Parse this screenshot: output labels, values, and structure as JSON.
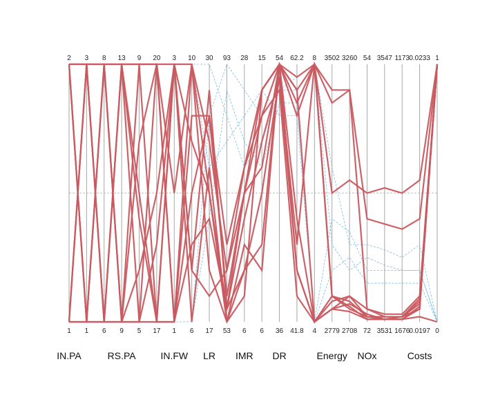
{
  "chart_data": {
    "type": "parallel-coordinates",
    "axes": [
      {
        "name": "IN.PA",
        "max": "2",
        "min": "1",
        "label": "IN.PA"
      },
      {
        "name": "IN.PA.2",
        "max": "3",
        "min": "1",
        "label": ""
      },
      {
        "name": "IN.PA.3",
        "max": "8",
        "min": "6",
        "label": ""
      },
      {
        "name": "RS.PA",
        "max": "13",
        "min": "9",
        "label": "RS.PA"
      },
      {
        "name": "RS.PA.2",
        "max": "9",
        "min": "5",
        "label": ""
      },
      {
        "name": "RS.PA.3",
        "max": "20",
        "min": "17",
        "label": ""
      },
      {
        "name": "IN.FW",
        "max": "3",
        "min": "1",
        "label": "IN.FW"
      },
      {
        "name": "IN.FW.2",
        "max": "10",
        "min": "6",
        "label": ""
      },
      {
        "name": "LR",
        "max": "30",
        "min": "17",
        "label": "LR"
      },
      {
        "name": "LR.2",
        "max": "93",
        "min": "53",
        "label": ""
      },
      {
        "name": "IMR",
        "max": "28",
        "min": "6",
        "label": "IMR"
      },
      {
        "name": "IMR.2",
        "max": "15",
        "min": "6",
        "label": ""
      },
      {
        "name": "DR",
        "max": "54",
        "min": "36",
        "label": "DR"
      },
      {
        "name": "DR.2",
        "max": "62.2",
        "min": "41.8",
        "label": ""
      },
      {
        "name": "DR.3",
        "max": "8",
        "min": "4",
        "label": ""
      },
      {
        "name": "Energy",
        "max": "3502",
        "min": "2779",
        "label": "Energy"
      },
      {
        "name": "Energy.2",
        "max": "3260",
        "min": "2708",
        "label": ""
      },
      {
        "name": "NOx",
        "max": "54",
        "min": "72",
        "label": "NOx"
      },
      {
        "name": "NOx.2",
        "max": "3547",
        "min": "3531",
        "label": ""
      },
      {
        "name": "NOx.3",
        "max": "1173",
        "min": "1676",
        "label": ""
      },
      {
        "name": "Costs",
        "max": "0.0233",
        "min": "0.0197",
        "label": "Costs"
      },
      {
        "name": "Costs.2",
        "max": "1",
        "min": "0",
        "label": ""
      }
    ],
    "top_labels": [
      "2",
      "3",
      "8",
      "13",
      "9",
      "20",
      "3",
      "10",
      "30",
      "93",
      "28",
      "15",
      "54",
      "62.2",
      "8",
      "3502",
      "3260",
      "54",
      "3547",
      "1173",
      "0.0233",
      "1"
    ],
    "bottom_labels": [
      "1",
      "1",
      "6",
      "9",
      "5",
      "17",
      "1",
      "6",
      "17",
      "53",
      "6",
      "6",
      "36",
      "41.8",
      "4",
      "2779",
      "2708",
      "72",
      "3531",
      "1676",
      "0.0197",
      "0"
    ],
    "axis_group_labels": [
      {
        "text": "IN.PA",
        "axis": 0
      },
      {
        "text": "RS.PA",
        "axis": 3
      },
      {
        "text": "IN.FW",
        "axis": 6
      },
      {
        "text": "LR",
        "axis": 8
      },
      {
        "text": "IMR",
        "axis": 10
      },
      {
        "text": "DR",
        "axis": 12
      },
      {
        "text": "Energy",
        "axis": 15
      },
      {
        "text": "NOx",
        "axis": 17
      },
      {
        "text": "Costs",
        "axis": 20
      }
    ],
    "series": [
      {
        "group": "highlighted",
        "color": "#c95a5f",
        "values": [
          [
            1,
            1,
            0,
            1,
            1,
            1,
            0,
            1,
            0.2,
            0,
            0.1,
            0.9,
            1,
            0.8,
            1,
            0.9,
            0.9,
            0.05,
            0.02,
            0.02,
            0.05,
            1
          ],
          [
            0,
            0,
            1,
            0,
            0,
            0,
            1,
            0,
            0.6,
            0,
            0.3,
            0.2,
            1,
            0.9,
            0,
            0.05,
            0.1,
            0.05,
            0.03,
            0.03,
            0.1,
            1
          ],
          [
            1,
            0,
            1,
            1,
            0.5,
            0,
            1,
            1,
            0.5,
            0.05,
            0.4,
            0.7,
            0.95,
            0.2,
            0,
            0.1,
            0.08,
            0.02,
            0.01,
            0.01,
            0.05,
            1
          ],
          [
            0,
            1,
            0,
            0,
            1,
            1,
            0,
            0.5,
            0.8,
            0.1,
            0.5,
            0.6,
            1,
            0.85,
            1,
            0.1,
            0.05,
            0.02,
            0.02,
            0.02,
            0.08,
            1
          ],
          [
            1,
            0,
            0,
            1,
            0,
            0.3,
            1,
            0.2,
            0.9,
            0.05,
            0.5,
            0.8,
            0.9,
            0.1,
            0,
            0.05,
            0.07,
            0.03,
            0.01,
            0.02,
            0.09,
            1
          ],
          [
            0,
            1,
            1,
            0,
            0.7,
            1,
            0.5,
            1,
            0.7,
            0.2,
            0.6,
            0.9,
            1,
            0.9,
            1,
            0.5,
            0.55,
            0.5,
            0.52,
            0.5,
            0.55,
            1
          ],
          [
            1,
            1,
            0,
            1,
            1,
            0,
            0,
            0.3,
            0.4,
            0.05,
            0.2,
            0.3,
            1,
            0.4,
            0,
            0.05,
            0.04,
            0.01,
            0.01,
            0.01,
            0.02,
            0
          ],
          [
            0,
            0,
            1,
            0,
            0.2,
            0.5,
            1,
            0.7,
            0.5,
            0,
            0.2,
            0.5,
            0.95,
            0.3,
            1,
            0.85,
            0.9,
            0.4,
            0.38,
            0.36,
            0.4,
            1
          ],
          [
            1,
            0,
            0,
            0,
            0,
            1,
            1,
            0.2,
            0.1,
            0.2,
            0.5,
            0.9,
            1,
            0.95,
            1,
            0.1,
            0.06,
            0.01,
            0.01,
            0.01,
            0.06,
            1
          ],
          [
            0,
            1,
            1,
            1,
            0.4,
            0,
            0,
            0.8,
            0.8,
            0.3,
            0.6,
            0.8,
            1,
            0.2,
            0,
            0.08,
            0.1,
            0.02,
            0.02,
            0.02,
            0.07,
            1
          ]
        ]
      },
      {
        "group": "other",
        "color": "#6cb4e0",
        "values": [
          [
            0.5,
            0.5,
            0.5,
            0.5,
            0.5,
            0.5,
            0.5,
            0.5,
            0.5,
            0.5,
            0.5,
            0.5,
            0.5,
            0.5,
            0.5,
            0.5,
            0.5,
            0.5,
            0.5,
            0.5,
            0.5,
            0.5
          ],
          [
            1,
            1,
            1,
            1,
            1,
            1,
            1,
            1,
            1,
            0.8,
            0.6,
            0.7,
            0.9,
            0.9,
            1,
            0.3,
            0.2,
            0.25,
            0.22,
            0.2,
            0.2,
            0
          ],
          [
            0,
            0,
            0,
            0,
            0,
            0,
            0,
            0,
            0.4,
            0.9,
            0.7,
            0.6,
            0.85,
            0.85,
            0,
            0.4,
            0.35,
            0.2,
            0.2,
            0.2,
            0.2,
            0
          ],
          [
            1,
            0,
            1,
            0,
            1,
            0,
            1,
            0,
            0.8,
            1,
            0.9,
            0.8,
            0.9,
            0.95,
            1,
            0.6,
            0.3,
            0.3,
            0.28,
            0.25,
            0.3,
            0
          ],
          [
            0,
            1,
            0,
            1,
            0,
            1,
            0,
            1,
            0.6,
            0.7,
            0.8,
            0.9,
            0.8,
            0.8,
            0,
            0.2,
            0.25,
            0.15,
            0.15,
            0.15,
            0.15,
            0
          ]
        ]
      }
    ]
  }
}
